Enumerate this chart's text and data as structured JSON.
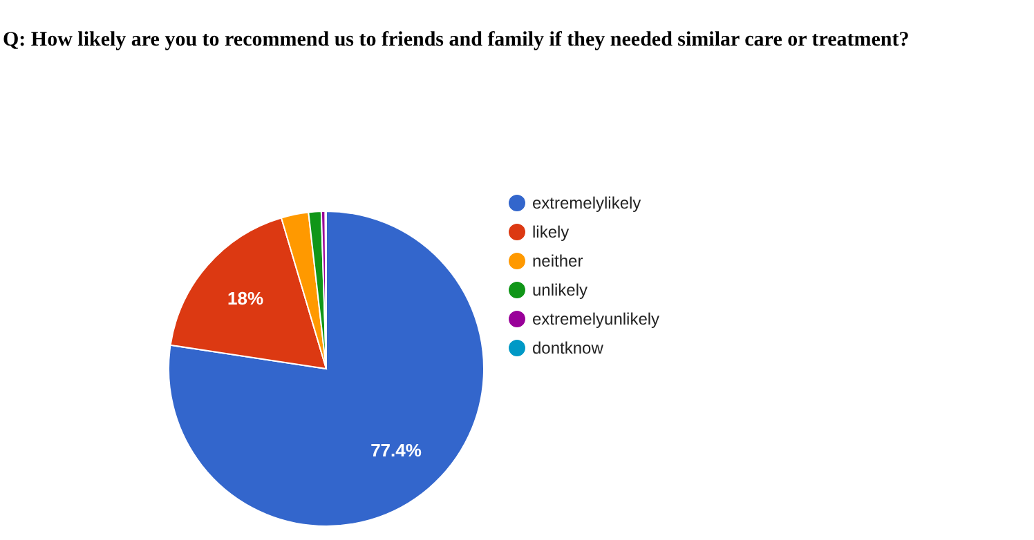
{
  "chart_data": {
    "type": "pie",
    "title": "Q: How likely are you to recommend us to friends and family if they needed similar care or treatment?",
    "categories": [
      "extremelylikely",
      "likely",
      "neither",
      "unlikely",
      "extremelyunlikely",
      "dontknow"
    ],
    "values": [
      77.4,
      18,
      2.8,
      1.3,
      0.4,
      0.1
    ],
    "colors": [
      "#3366cc",
      "#dc3912",
      "#ff9900",
      "#109618",
      "#990099",
      "#0099c6"
    ],
    "value_labels": [
      "77.4%",
      "18%",
      null,
      null,
      null,
      null
    ],
    "legend": "right"
  }
}
